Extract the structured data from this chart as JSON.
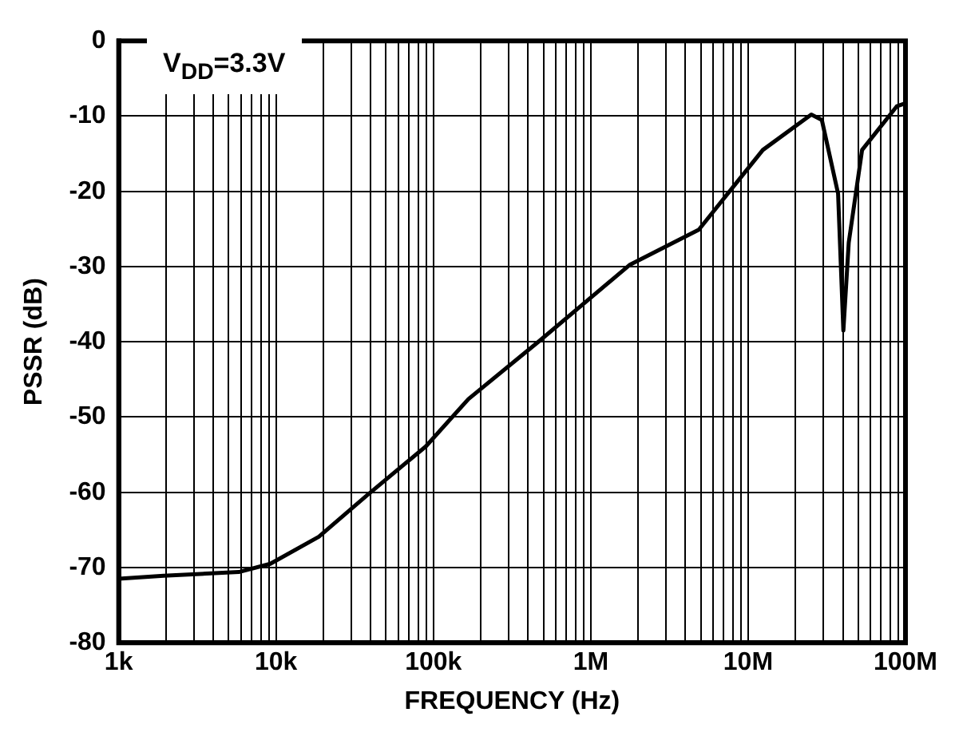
{
  "chart_data": {
    "type": "line",
    "xlabel": "FREQUENCY (Hz)",
    "ylabel": "PSSR (dB)",
    "annotations": [
      "V$_{DD}$=3.3V"
    ],
    "log": "x",
    "grid": true,
    "legend": false,
    "marker": "none",
    "line_style": "solid",
    "xlim": [
      1000,
      100000000
    ],
    "ylim": [
      -80,
      0
    ],
    "xticks": [
      {
        "value": 1000,
        "label": "1k"
      },
      {
        "value": 2000,
        "label": null
      },
      {
        "value": 3000,
        "label": null
      },
      {
        "value": 4000,
        "label": null
      },
      {
        "value": 5000,
        "label": null
      },
      {
        "value": 6000,
        "label": null
      },
      {
        "value": 7000,
        "label": null
      },
      {
        "value": 8000,
        "label": null
      },
      {
        "value": 9000,
        "label": null
      },
      {
        "value": 10000,
        "label": "10k"
      },
      {
        "value": 20000,
        "label": null
      },
      {
        "value": 30000,
        "label": null
      },
      {
        "value": 40000,
        "label": null
      },
      {
        "value": 50000,
        "label": null
      },
      {
        "value": 60000,
        "label": null
      },
      {
        "value": 70000,
        "label": null
      },
      {
        "value": 80000,
        "label": null
      },
      {
        "value": 90000,
        "label": null
      },
      {
        "value": 100000,
        "label": "100k"
      },
      {
        "value": 200000,
        "label": null
      },
      {
        "value": 300000,
        "label": null
      },
      {
        "value": 400000,
        "label": null
      },
      {
        "value": 500000,
        "label": null
      },
      {
        "value": 600000,
        "label": null
      },
      {
        "value": 700000,
        "label": null
      },
      {
        "value": 800000,
        "label": null
      },
      {
        "value": 900000,
        "label": null
      },
      {
        "value": 1000000,
        "label": "1M"
      },
      {
        "value": 2000000,
        "label": null
      },
      {
        "value": 3000000,
        "label": null
      },
      {
        "value": 4000000,
        "label": null
      },
      {
        "value": 5000000,
        "label": null
      },
      {
        "value": 6000000,
        "label": null
      },
      {
        "value": 7000000,
        "label": null
      },
      {
        "value": 8000000,
        "label": null
      },
      {
        "value": 9000000,
        "label": null
      },
      {
        "value": 10000000,
        "label": "10M"
      },
      {
        "value": 20000000,
        "label": null
      },
      {
        "value": 30000000,
        "label": null
      },
      {
        "value": 40000000,
        "label": null
      },
      {
        "value": 50000000,
        "label": null
      },
      {
        "value": 60000000,
        "label": null
      },
      {
        "value": 70000000,
        "label": null
      },
      {
        "value": 80000000,
        "label": null
      },
      {
        "value": 90000000,
        "label": null
      },
      {
        "value": 100000000,
        "label": "100M"
      }
    ],
    "yticks": [
      -80,
      -70,
      -60,
      -50,
      -40,
      -30,
      -20,
      -10,
      0
    ],
    "series": [
      {
        "color": "#000000",
        "x": [
          1000,
          1930,
          5800,
          9200,
          18700,
          37900,
          89500,
          167000,
          464000,
          1760000,
          4860000,
          8400000,
          12400000,
          25200000,
          29400000,
          37300000,
          40300000,
          43600000,
          53000000,
          88000000,
          100000000
        ],
        "values": [
          -71.5,
          -71.1,
          -70.6,
          -69.5,
          -65.9,
          -60.4,
          -53.9,
          -47.6,
          -40,
          -29.8,
          -25.1,
          -18.9,
          -14.5,
          -9.8,
          -10.5,
          -20.3,
          -38.5,
          -26.8,
          -14.5,
          -8.7,
          -8.3
        ]
      }
    ]
  }
}
